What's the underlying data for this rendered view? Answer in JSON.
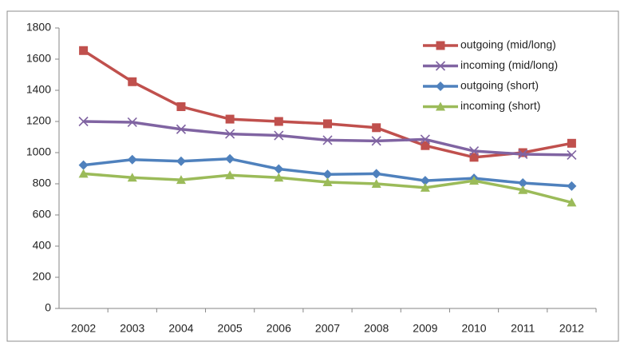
{
  "chart_data": {
    "type": "line",
    "categories": [
      "2002",
      "2003",
      "2004",
      "2005",
      "2006",
      "2007",
      "2008",
      "2009",
      "2010",
      "2011",
      "2012"
    ],
    "series": [
      {
        "name": "outgoing (mid/long)",
        "color": "#c0504d",
        "marker": "square",
        "values": [
          1655,
          1455,
          1295,
          1215,
          1200,
          1185,
          1160,
          1045,
          970,
          1000,
          1060
        ]
      },
      {
        "name": "incoming (mid/long)",
        "color": "#8064a2",
        "marker": "x",
        "values": [
          1200,
          1195,
          1150,
          1120,
          1110,
          1080,
          1075,
          1085,
          1010,
          990,
          985
        ]
      },
      {
        "name": "outgoing (short)",
        "color": "#4f81bd",
        "marker": "diamond",
        "values": [
          920,
          955,
          945,
          960,
          895,
          860,
          865,
          820,
          835,
          805,
          785
        ]
      },
      {
        "name": "incoming (short)",
        "color": "#9bbb59",
        "marker": "triangle",
        "values": [
          865,
          840,
          825,
          855,
          840,
          810,
          800,
          775,
          820,
          760,
          680
        ]
      }
    ],
    "ylim": [
      0,
      1800
    ],
    "yticks": [
      0,
      200,
      400,
      600,
      800,
      1000,
      1200,
      1400,
      1600,
      1800
    ],
    "grid": false,
    "legend": "upper right"
  }
}
